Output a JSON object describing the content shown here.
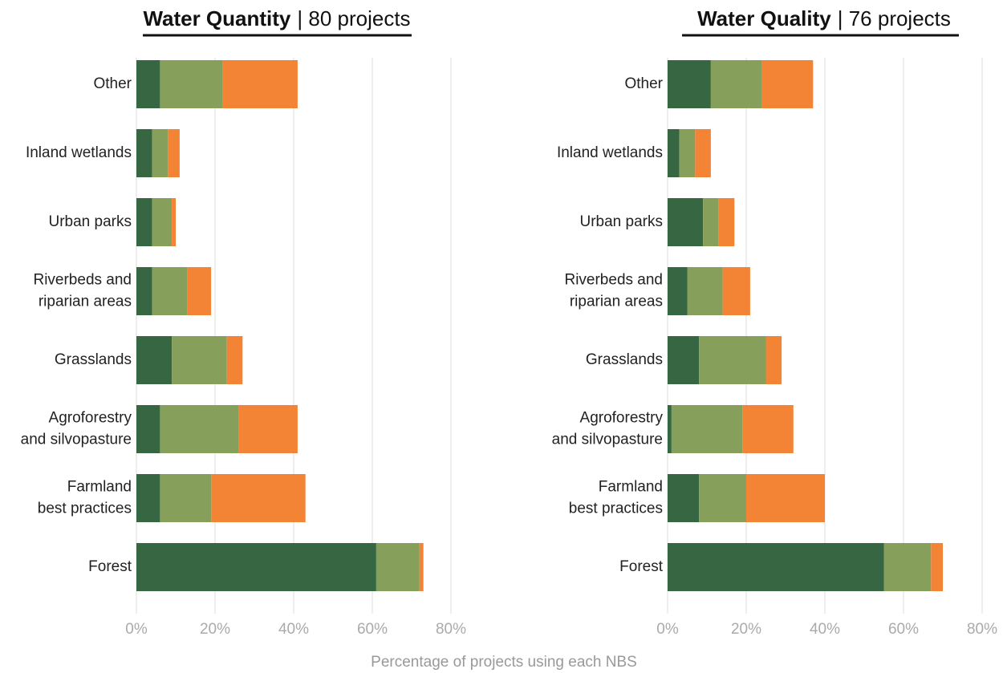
{
  "x_label": "Percentage of projects using each NBS",
  "chart_data": [
    {
      "type": "stacked-bar-horizontal",
      "title": "Water Quantity",
      "subtitle": "| 80 projects",
      "categories": [
        "Other",
        "Inland wetlands",
        "Urban parks",
        "Riverbeds and\nriparian areas",
        "Grasslands",
        "Agroforestry\nand silvopasture",
        "Farmland\nbest practices",
        "Forest"
      ],
      "series": [
        {
          "color": "#376742",
          "values": [
            6,
            4,
            4,
            4,
            9,
            6,
            6,
            61
          ]
        },
        {
          "color": "#86a05c",
          "values": [
            16,
            4,
            5,
            9,
            14,
            20,
            13,
            11
          ]
        },
        {
          "color": "#f38335",
          "values": [
            19,
            3,
            1,
            6,
            4,
            15,
            24,
            1
          ]
        }
      ],
      "xlim": [
        0,
        80
      ],
      "xticks": [
        {
          "value": 0,
          "label": "0%"
        },
        {
          "value": 20,
          "label": "20%"
        },
        {
          "value": 40,
          "label": "40%"
        },
        {
          "value": 60,
          "label": "60%"
        },
        {
          "value": 80,
          "label": "80%"
        }
      ],
      "grid": true
    },
    {
      "type": "stacked-bar-horizontal",
      "title": "Water Quality",
      "subtitle": "| 76 projects",
      "categories": [
        "Other",
        "Inland wetlands",
        "Urban parks",
        "Riverbeds and\nriparian areas",
        "Grasslands",
        "Agroforestry\nand silvopasture",
        "Farmland\nbest practices",
        "Forest"
      ],
      "series": [
        {
          "color": "#376742",
          "values": [
            11,
            3,
            9,
            5,
            8,
            1,
            8,
            55
          ]
        },
        {
          "color": "#86a05c",
          "values": [
            13,
            4,
            4,
            9,
            17,
            18,
            12,
            12
          ]
        },
        {
          "color": "#f38335",
          "values": [
            13,
            4,
            4,
            7,
            4,
            13,
            20,
            3
          ]
        }
      ],
      "xlim": [
        0,
        80
      ],
      "xticks": [
        {
          "value": 0,
          "label": "0%"
        },
        {
          "value": 20,
          "label": "20%"
        },
        {
          "value": 40,
          "label": "40%"
        },
        {
          "value": 60,
          "label": "60%"
        },
        {
          "value": 80,
          "label": "80%"
        }
      ],
      "grid": true
    }
  ]
}
